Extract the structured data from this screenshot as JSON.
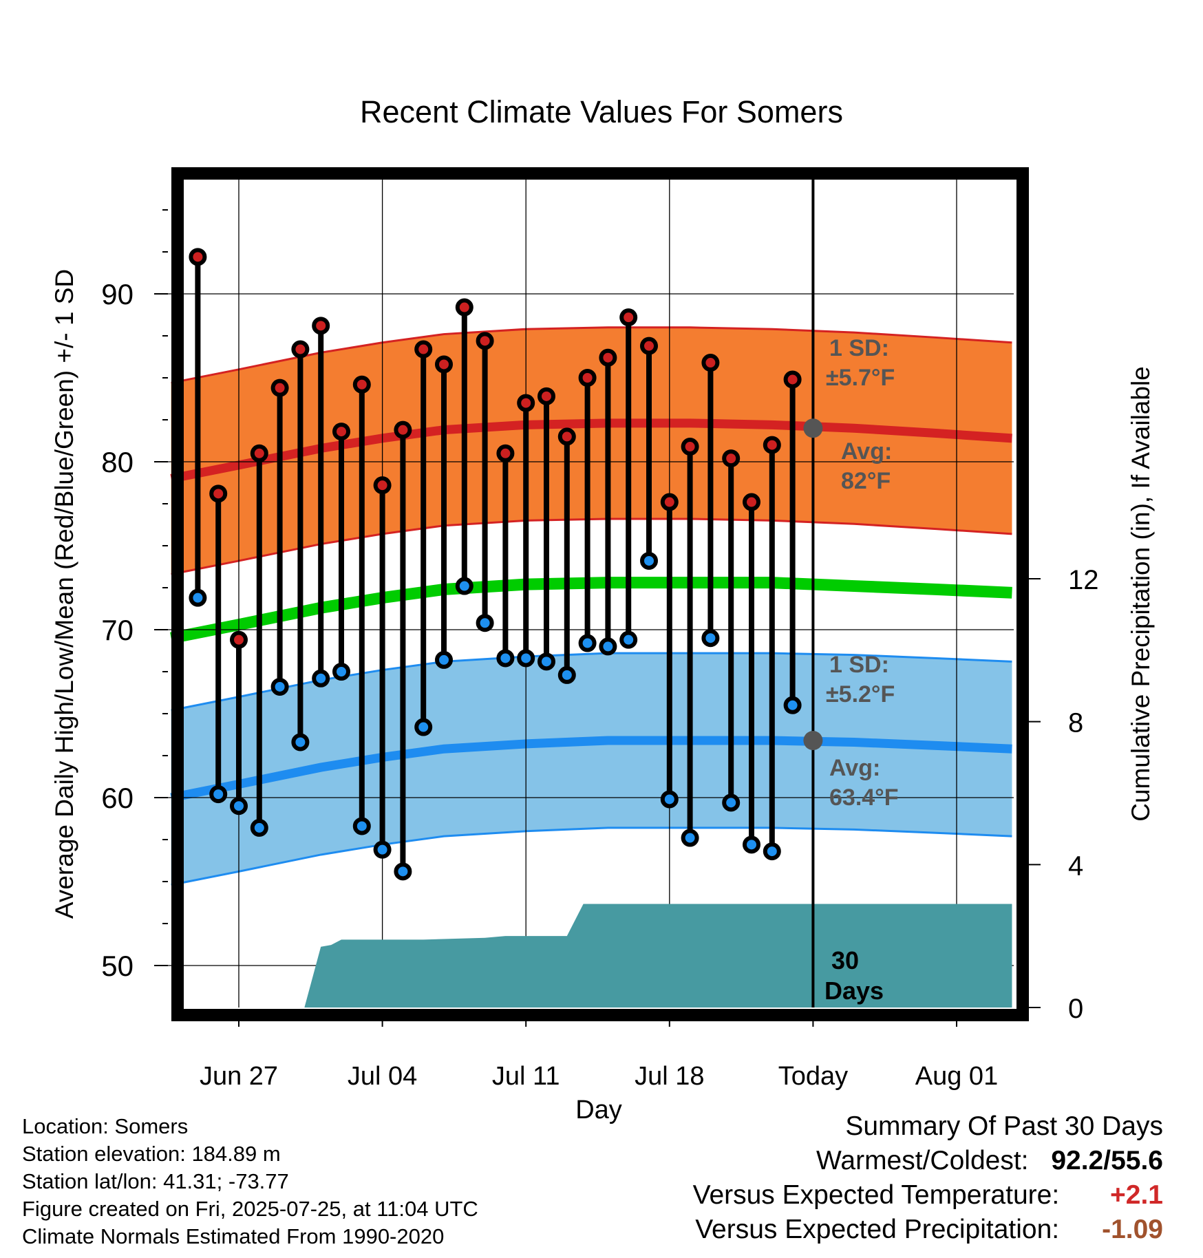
{
  "chart_data": {
    "type": "line",
    "title": "Recent Climate Values For Somers",
    "xlabel": "Day",
    "ylabel": "Average Daily High/Low/Mean (Red/Blue/Green) +/- 1 SD",
    "y2label": "Cumulative Precipitation (in), If Available",
    "x_ticks": [
      "Jun 27",
      "Jul 04",
      "Jul 11",
      "Jul 18",
      "Today",
      "Aug 01"
    ],
    "y_ticks": [
      50,
      60,
      70,
      80,
      90
    ],
    "y2_ticks": [
      0,
      4,
      8,
      12
    ],
    "ylim": [
      47.5,
      97.5
    ],
    "y2lim": [
      0,
      23.5
    ],
    "grid": true,
    "today_label": "30 Days",
    "high_annotation": {
      "sd_label": "1 SD:",
      "sd_value": "±5.7°F",
      "avg_label": "Avg:",
      "avg_value": "82°F"
    },
    "low_annotation": {
      "sd_label": "1 SD:",
      "sd_value": "±5.2°F",
      "avg_label": "Avg:",
      "avg_value": "63.4°F"
    },
    "normals": {
      "x": [
        -3.3,
        0,
        4,
        7,
        10,
        14,
        18,
        22,
        26,
        30,
        34,
        37.7
      ],
      "high_avg": [
        79.0,
        79.8,
        80.8,
        81.4,
        81.9,
        82.2,
        82.3,
        82.3,
        82.2,
        82.0,
        81.7,
        81.4
      ],
      "high_sd": 5.7,
      "low_avg": [
        60.0,
        60.8,
        61.8,
        62.4,
        62.9,
        63.2,
        63.4,
        63.4,
        63.4,
        63.3,
        63.1,
        62.9
      ],
      "low_sd": 5.2,
      "mean": [
        69.5,
        70.3,
        71.3,
        71.9,
        72.4,
        72.7,
        72.8,
        72.8,
        72.8,
        72.6,
        72.4,
        72.2
      ]
    },
    "daily": {
      "day_offset": [
        -2,
        -1,
        0,
        1,
        2,
        3,
        4,
        5,
        6,
        7,
        8,
        9,
        10,
        11,
        12,
        13,
        14,
        15,
        16,
        17,
        18,
        19,
        20,
        21,
        22,
        23,
        24,
        25,
        26,
        27
      ],
      "high": [
        92.2,
        78.1,
        69.4,
        80.5,
        84.4,
        86.7,
        88.1,
        81.8,
        84.6,
        78.6,
        81.9,
        86.7,
        85.8,
        89.2,
        87.2,
        80.5,
        83.5,
        83.9,
        81.5,
        85.0,
        86.2,
        88.6,
        86.9,
        77.6,
        80.9,
        85.9,
        80.2,
        77.6,
        81.0,
        84.9
      ],
      "low": [
        71.9,
        60.2,
        59.5,
        58.2,
        66.6,
        63.3,
        67.1,
        67.5,
        58.3,
        56.9,
        55.6,
        64.2,
        68.2,
        72.6,
        70.4,
        68.3,
        68.3,
        68.1,
        67.3,
        69.2,
        69.0,
        69.4,
        74.1,
        59.9,
        57.6,
        69.5,
        59.7,
        57.2,
        56.8,
        65.5
      ]
    },
    "precip": {
      "day_offset": [
        3.2,
        4.0,
        4.5,
        5.0,
        6.0,
        9.0,
        12.0,
        13.0,
        16.0,
        16.8,
        17.6,
        37.7
      ],
      "cumulative": [
        0.0,
        1.7,
        1.75,
        1.9,
        1.9,
        1.9,
        1.95,
        2.0,
        2.0,
        2.9,
        2.9,
        2.9
      ]
    }
  },
  "info": {
    "location": "Location: Somers",
    "elevation": "Station elevation: 184.89 m",
    "latlon": "Station lat/lon: 41.31; -73.77",
    "created": "Figure created on Fri, 2025-07-25, at 11:04 UTC",
    "normals": "Climate Normals Estimated From 1990-2020"
  },
  "summary": {
    "title": "Summary Of Past 30 Days",
    "warmest_label": "Warmest/Coldest:",
    "warmest_value": "92.2/55.6",
    "temp_label": "Versus Expected Temperature:",
    "temp_value": "+2.1",
    "precip_label": "Versus Expected Precipitation:",
    "precip_value": "-1.09"
  },
  "colors": {
    "high_band": "#f47d30",
    "high_line": "#d42222",
    "low_band": "#85c3e8",
    "low_line": "#1e8cf0",
    "mean_line": "#00cc00",
    "precip_fill": "#479aa1",
    "high_dot": "#cc2020",
    "low_dot": "#1e90f0",
    "annotation": "#555555",
    "temp_value": "#d02828",
    "precip_value": "#a0522d"
  }
}
